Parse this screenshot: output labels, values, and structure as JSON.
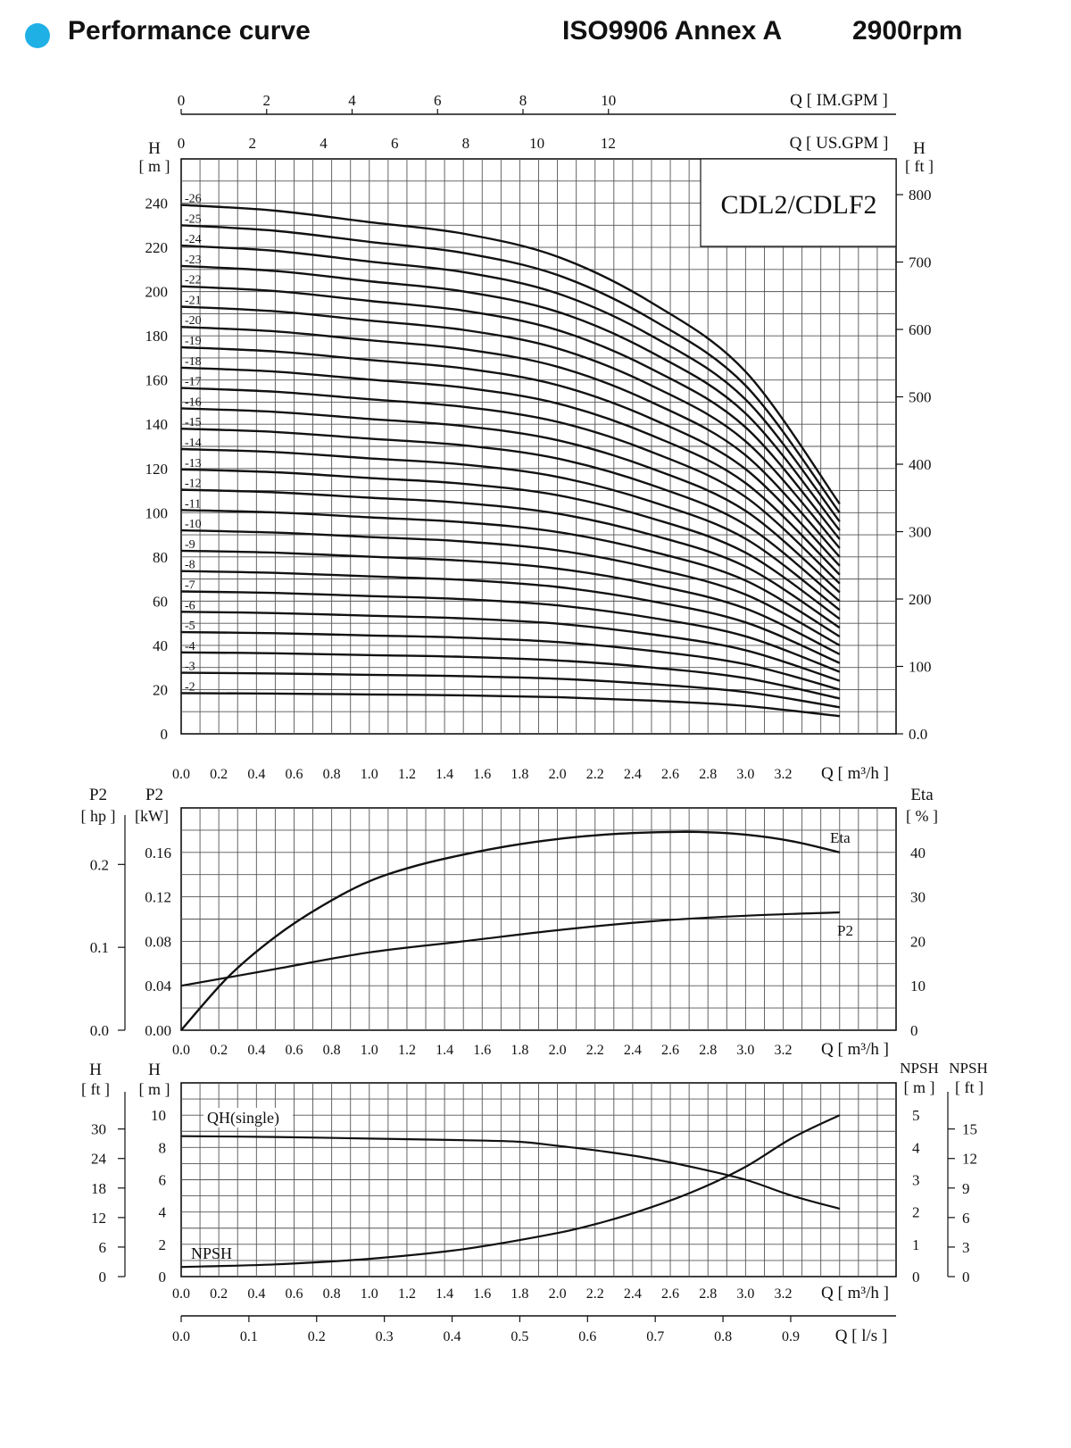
{
  "header": {
    "title": "Performance curve",
    "standard": "ISO9906 Annex A",
    "speed": "2900rpm"
  },
  "colors": {
    "accent": "#1fb1e6",
    "ink": "#111111",
    "grid": "#555555"
  },
  "chart_data": [
    {
      "type": "line",
      "id": "head",
      "title": "CDL2/CDLF2",
      "xlabel": "Q [ m³/h ]",
      "ylabel_left": "H [ m ]",
      "ylabel_right": "H [ ft ]",
      "top_axis_1_label": "Q [ IM.GPM ]",
      "top_axis_1_ticks": [
        "0",
        "2",
        "4",
        "6",
        "8",
        "10"
      ],
      "top_axis_2_label": "Q [ US.GPM ]",
      "top_axis_2_ticks": [
        "0",
        "2",
        "4",
        "6",
        "8",
        "10",
        "12"
      ],
      "x_ticks": [
        "0.0",
        "0.2",
        "0.4",
        "0.6",
        "0.8",
        "1.0",
        "1.2",
        "1.4",
        "1.6",
        "1.8",
        "2.0",
        "2.2",
        "2.4",
        "2.6",
        "2.8",
        "3.0",
        "3.2"
      ],
      "xlim": [
        0,
        3.8
      ],
      "ylim": [
        0,
        260
      ],
      "y_ticks_left": [
        "0",
        "20",
        "40",
        "60",
        "80",
        "100",
        "120",
        "140",
        "160",
        "180",
        "200",
        "220",
        "240"
      ],
      "y_ticks_right": [
        "0.0",
        "100",
        "200",
        "300",
        "400",
        "500",
        "600",
        "700",
        "800"
      ],
      "grid": true,
      "x": [
        0,
        0.5,
        1.0,
        1.5,
        2.0,
        2.5,
        3.0,
        3.5
      ],
      "stage_single_head": [
        9.2,
        9.1,
        8.9,
        8.7,
        8.3,
        7.5,
        6.3,
        4.0
      ],
      "series": [
        {
          "name": "-2",
          "stages": 2
        },
        {
          "name": "-3",
          "stages": 3
        },
        {
          "name": "-4",
          "stages": 4
        },
        {
          "name": "-5",
          "stages": 5
        },
        {
          "name": "-6",
          "stages": 6
        },
        {
          "name": "-7",
          "stages": 7
        },
        {
          "name": "-8",
          "stages": 8
        },
        {
          "name": "-9",
          "stages": 9
        },
        {
          "name": "-10",
          "stages": 10
        },
        {
          "name": "-11",
          "stages": 11
        },
        {
          "name": "-12",
          "stages": 12
        },
        {
          "name": "-13",
          "stages": 13
        },
        {
          "name": "-14",
          "stages": 14
        },
        {
          "name": "-15",
          "stages": 15
        },
        {
          "name": "-16",
          "stages": 16
        },
        {
          "name": "-17",
          "stages": 17
        },
        {
          "name": "-18",
          "stages": 18
        },
        {
          "name": "-19",
          "stages": 19
        },
        {
          "name": "-20",
          "stages": 20
        },
        {
          "name": "-21",
          "stages": 21
        },
        {
          "name": "-22",
          "stages": 22
        },
        {
          "name": "-23",
          "stages": 23
        },
        {
          "name": "-24",
          "stages": 24
        },
        {
          "name": "-25",
          "stages": 25
        },
        {
          "name": "-26",
          "stages": 26
        }
      ]
    },
    {
      "type": "line",
      "id": "power",
      "xlabel": "Q [ m³/h ]",
      "ylabel_left_outer": "P2 [ hp ]",
      "ylabel_left": "P2 [kW]",
      "ylabel_right": "Eta [ % ]",
      "x_ticks": [
        "0.0",
        "0.2",
        "0.4",
        "0.6",
        "0.8",
        "1.0",
        "1.2",
        "1.4",
        "1.6",
        "1.8",
        "2.0",
        "2.2",
        "2.4",
        "2.6",
        "2.8",
        "3.0",
        "3.2"
      ],
      "xlim": [
        0,
        3.8
      ],
      "ylim": [
        0,
        0.2
      ],
      "y_ticks_left": [
        "0.00",
        "0.04",
        "0.08",
        "0.12",
        "0.16"
      ],
      "y_ticks_hp": [
        "0.0",
        "0.1",
        "0.2"
      ],
      "y_ticks_right": [
        "0",
        "10",
        "20",
        "30",
        "40"
      ],
      "grid": true,
      "series": [
        {
          "name": "Eta",
          "unit": "%",
          "x": [
            0,
            0.25,
            0.5,
            0.75,
            1.0,
            1.25,
            1.5,
            1.75,
            2.0,
            2.25,
            2.5,
            2.75,
            3.0,
            3.25,
            3.5
          ],
          "values": [
            0,
            12,
            21,
            28,
            33.5,
            37,
            39.5,
            41.5,
            43,
            44,
            44.5,
            44.6,
            44,
            42.5,
            40
          ]
        },
        {
          "name": "P2",
          "unit": "kW",
          "x": [
            0,
            0.5,
            1.0,
            1.5,
            2.0,
            2.5,
            3.0,
            3.5
          ],
          "values": [
            0.04,
            0.055,
            0.07,
            0.08,
            0.09,
            0.098,
            0.103,
            0.106
          ]
        }
      ]
    },
    {
      "type": "line",
      "id": "npsh",
      "xlabel": "Q [ m³/h ]",
      "x2label": "Q [ l/s ]",
      "ylabel_left_outer": "H [ ft ]",
      "ylabel_left": "H [ m ]",
      "ylabel_right": "NPSH [ m ]",
      "ylabel_right_outer": "NPSH [ ft ]",
      "x_ticks": [
        "0.0",
        "0.2",
        "0.4",
        "0.6",
        "0.8",
        "1.0",
        "1.2",
        "1.4",
        "1.6",
        "1.8",
        "2.0",
        "2.2",
        "2.4",
        "2.6",
        "2.8",
        "3.0",
        "3.2"
      ],
      "x2_ticks": [
        "0.0",
        "0.1",
        "0.2",
        "0.3",
        "0.4",
        "0.5",
        "0.6",
        "0.7",
        "0.8",
        "0.9"
      ],
      "xlim": [
        0,
        3.8
      ],
      "ylim": [
        0,
        12
      ],
      "y_ticks_left": [
        "0",
        "2",
        "4",
        "6",
        "8",
        "10"
      ],
      "y_ticks_ft": [
        "0",
        "6",
        "12",
        "18",
        "24",
        "30"
      ],
      "y_ticks_right": [
        "0",
        "1",
        "2",
        "3",
        "4",
        "5"
      ],
      "y_ticks_right_ft": [
        "0",
        "3",
        "6",
        "9",
        "12",
        "15"
      ],
      "grid": true,
      "series": [
        {
          "name": "QH(single)",
          "unit": "m",
          "x": [
            0,
            0.5,
            1.0,
            1.5,
            1.8,
            2.0,
            2.25,
            2.5,
            2.75,
            3.0,
            3.25,
            3.5
          ],
          "values": [
            8.7,
            8.65,
            8.55,
            8.45,
            8.35,
            8.1,
            7.75,
            7.3,
            6.7,
            6.0,
            5.0,
            4.2
          ]
        },
        {
          "name": "NPSH",
          "unit": "m",
          "x": [
            0,
            0.5,
            1.0,
            1.5,
            2.0,
            2.25,
            2.5,
            2.75,
            3.0,
            3.25,
            3.5
          ],
          "values": [
            0.3,
            0.38,
            0.55,
            0.85,
            1.35,
            1.7,
            2.15,
            2.7,
            3.4,
            4.3,
            5.0
          ]
        }
      ]
    }
  ]
}
